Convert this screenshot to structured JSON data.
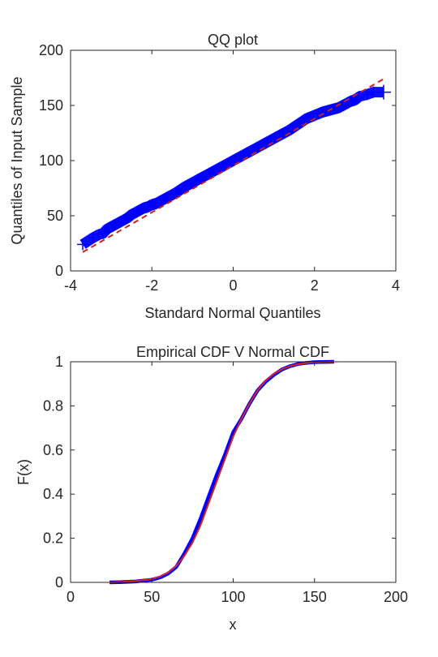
{
  "chart_data": [
    {
      "type": "scatter",
      "title": "QQ plot",
      "xlabel": "Standard Normal Quantiles",
      "ylabel": "Quantiles of Input Sample",
      "xlim": [
        -4,
        4
      ],
      "ylim": [
        0,
        200
      ],
      "xticks": [
        -4,
        -2,
        0,
        2,
        4
      ],
      "yticks": [
        0,
        50,
        100,
        150,
        200
      ],
      "xtick_labels": [
        "-4",
        "-2",
        "0",
        "2",
        "4"
      ],
      "ytick_labels": [
        "0",
        "50",
        "100",
        "150",
        "200"
      ],
      "grid": false,
      "series": [
        {
          "marker": "+",
          "color": "#0000ff",
          "x": [
            -3.7,
            -3.45,
            -3.3,
            -3.2,
            -3.1,
            -3.0,
            -2.9,
            -2.8,
            -2.7,
            -2.6,
            -2.5,
            -2.4,
            -2.3,
            -2.2,
            -2.1,
            -2.0,
            -1.9,
            -1.8,
            -1.6,
            -1.4,
            -1.2,
            -1.0,
            -0.8,
            -0.6,
            -0.4,
            -0.2,
            0.0,
            0.2,
            0.4,
            0.6,
            0.8,
            1.0,
            1.2,
            1.4,
            1.6,
            1.8,
            2.0,
            2.2,
            2.4,
            2.6,
            2.7,
            2.8,
            2.9,
            3.0,
            3.1,
            3.3,
            3.45,
            3.7
          ],
          "y": [
            24,
            30,
            33,
            34,
            38,
            40,
            42,
            44,
            46,
            48,
            51,
            53,
            55,
            57,
            58,
            60,
            61,
            63,
            67,
            71,
            76,
            80,
            84,
            88,
            92,
            96,
            100,
            104,
            108,
            112,
            116,
            120,
            124,
            128,
            133,
            138,
            141,
            144,
            146,
            148,
            150,
            152,
            154,
            155,
            158,
            160,
            162,
            162
          ]
        }
      ],
      "reference_line": {
        "style": "dashed",
        "color": "#cc2222",
        "x": [
          -3.7,
          3.7
        ],
        "y": [
          17,
          174
        ]
      }
    },
    {
      "type": "line",
      "title": "Empirical CDF V Normal CDF",
      "xlabel": "x",
      "ylabel": "F(x)",
      "xlim": [
        0,
        200
      ],
      "ylim": [
        0,
        1
      ],
      "xticks": [
        0,
        50,
        100,
        150,
        200
      ],
      "yticks": [
        0,
        0.2,
        0.4,
        0.6,
        0.8,
        1
      ],
      "xtick_labels": [
        "0",
        "50",
        "100",
        "150",
        "200"
      ],
      "ytick_labels": [
        "0",
        "0.2",
        "0.4",
        "0.6",
        "0.8",
        "1"
      ],
      "grid": false,
      "series": [
        {
          "color": "#0000ff",
          "x": [
            24,
            30,
            40,
            50,
            55,
            60,
            65,
            70,
            75,
            80,
            85,
            90,
            95,
            100,
            105,
            110,
            115,
            120,
            125,
            130,
            135,
            140,
            145,
            150,
            155,
            162
          ],
          "y": [
            0.0,
            0.001,
            0.004,
            0.012,
            0.022,
            0.04,
            0.07,
            0.13,
            0.2,
            0.29,
            0.39,
            0.49,
            0.58,
            0.68,
            0.74,
            0.81,
            0.87,
            0.91,
            0.94,
            0.965,
            0.98,
            0.99,
            0.995,
            0.998,
            0.999,
            1.0
          ]
        },
        {
          "color": "#dd2222",
          "x": [
            24,
            30,
            40,
            50,
            55,
            60,
            65,
            70,
            75,
            80,
            85,
            90,
            95,
            100,
            105,
            110,
            115,
            120,
            125,
            130,
            135,
            140,
            145,
            150,
            155,
            162
          ],
          "y": [
            0.0,
            0.002,
            0.006,
            0.015,
            0.027,
            0.045,
            0.075,
            0.12,
            0.18,
            0.26,
            0.36,
            0.46,
            0.56,
            0.66,
            0.74,
            0.81,
            0.87,
            0.915,
            0.945,
            0.966,
            0.98,
            0.989,
            0.994,
            0.997,
            0.999,
            1.0
          ]
        }
      ]
    }
  ]
}
